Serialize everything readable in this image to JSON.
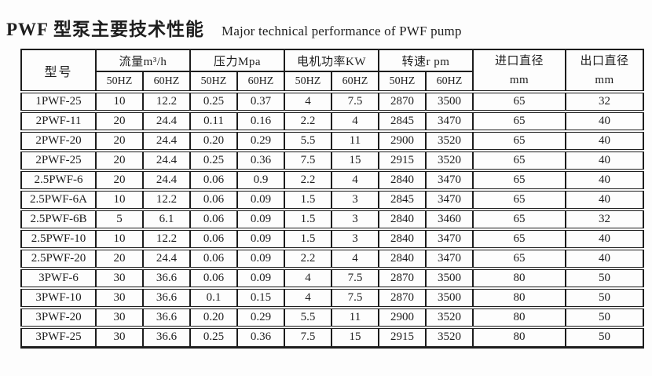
{
  "title": {
    "zh": "PWF 型泵主要技术性能",
    "en": "Major technical performance of PWF pump"
  },
  "table": {
    "header": {
      "model": "型号",
      "groups": [
        {
          "label": "流量m³/h",
          "sub": [
            "50HZ",
            "60HZ"
          ]
        },
        {
          "label": "压力Mpa",
          "sub": [
            "50HZ",
            "60HZ"
          ]
        },
        {
          "label": "电机功率KW",
          "sub": [
            "50HZ",
            "60HZ"
          ]
        },
        {
          "label": "转速r pm",
          "sub": [
            "50HZ",
            "60HZ"
          ]
        }
      ],
      "inlet": {
        "line1": "进口直径",
        "line2": "mm"
      },
      "outlet": {
        "line1": "出口直径",
        "line2": "mm"
      }
    },
    "rows": [
      [
        "1PWF-25",
        "10",
        "12.2",
        "0.25",
        "0.37",
        "4",
        "7.5",
        "2870",
        "3500",
        "65",
        "32"
      ],
      [
        "2PWF-11",
        "20",
        "24.4",
        "0.11",
        "0.16",
        "2.2",
        "4",
        "2845",
        "3470",
        "65",
        "40"
      ],
      [
        "2PWF-20",
        "20",
        "24.4",
        "0.20",
        "0.29",
        "5.5",
        "11",
        "2900",
        "3520",
        "65",
        "40"
      ],
      [
        "2PWF-25",
        "20",
        "24.4",
        "0.25",
        "0.36",
        "7.5",
        "15",
        "2915",
        "3520",
        "65",
        "40"
      ],
      [
        "2.5PWF-6",
        "20",
        "24.4",
        "0.06",
        "0.9",
        "2.2",
        "4",
        "2840",
        "3470",
        "65",
        "40"
      ],
      [
        "2.5PWF-6A",
        "10",
        "12.2",
        "0.06",
        "0.09",
        "1.5",
        "3",
        "2845",
        "3470",
        "65",
        "40"
      ],
      [
        "2.5PWF-6B",
        "5",
        "6.1",
        "0.06",
        "0.09",
        "1.5",
        "3",
        "2840",
        "3460",
        "65",
        "32"
      ],
      [
        "2.5PWF-10",
        "10",
        "12.2",
        "0.06",
        "0.09",
        "1.5",
        "3",
        "2840",
        "3470",
        "65",
        "40"
      ],
      [
        "2.5PWF-20",
        "20",
        "24.4",
        "0.06",
        "0.09",
        "2.2",
        "4",
        "2840",
        "3470",
        "65",
        "40"
      ],
      [
        "3PWF-6",
        "30",
        "36.6",
        "0.06",
        "0.09",
        "4",
        "7.5",
        "2870",
        "3500",
        "80",
        "50"
      ],
      [
        "3PWF-10",
        "30",
        "36.6",
        "0.1",
        "0.15",
        "4",
        "7.5",
        "2870",
        "3500",
        "80",
        "50"
      ],
      [
        "3PWF-20",
        "30",
        "36.6",
        "0.20",
        "0.29",
        "5.5",
        "11",
        "2900",
        "3520",
        "80",
        "50"
      ],
      [
        "3PWF-25",
        "30",
        "36.6",
        "0.25",
        "0.36",
        "7.5",
        "15",
        "2915",
        "3520",
        "80",
        "50"
      ]
    ]
  }
}
